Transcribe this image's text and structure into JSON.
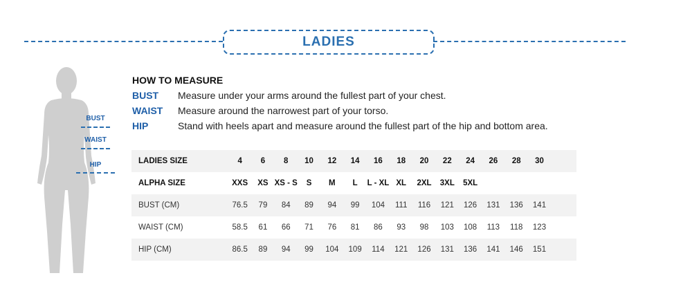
{
  "title": "LADIES",
  "how_to": {
    "heading": "HOW TO MEASURE",
    "items": [
      {
        "key": "BUST",
        "text": "Measure under your arms around the fullest part of your chest."
      },
      {
        "key": "WAIST",
        "text": "Measure around the narrowest part of your torso."
      },
      {
        "key": "HIP",
        "text": "Stand with heels apart and measure around the fullest part of the hip and bottom area."
      }
    ]
  },
  "figure_labels": [
    "BUST",
    "WAIST",
    "HIP"
  ],
  "colors": {
    "accent": "#2a6fb0",
    "silhouette": "#cfcfcf"
  },
  "table": {
    "rows": [
      {
        "label": "LADIES SIZE",
        "bold": true,
        "cells": [
          "4",
          "6",
          "8",
          "10",
          "12",
          "14",
          "16",
          "18",
          "20",
          "22",
          "24",
          "26",
          "28",
          "30"
        ]
      },
      {
        "label": "ALPHA SIZE",
        "bold": true,
        "cells": [
          "XXS",
          "XS",
          "XS - S",
          "S",
          "M",
          "L",
          "L - XL",
          "XL",
          "2XL",
          "3XL",
          "5XL",
          "",
          "",
          ""
        ]
      },
      {
        "label": "BUST (CM)",
        "bold": false,
        "cells": [
          "76.5",
          "79",
          "84",
          "89",
          "94",
          "99",
          "104",
          "111",
          "116",
          "121",
          "126",
          "131",
          "136",
          "141"
        ]
      },
      {
        "label": "WAIST (CM)",
        "bold": false,
        "cells": [
          "58.5",
          "61",
          "66",
          "71",
          "76",
          "81",
          "86",
          "93",
          "98",
          "103",
          "108",
          "113",
          "118",
          "123"
        ]
      },
      {
        "label": "HIP (CM)",
        "bold": false,
        "cells": [
          "86.5",
          "89",
          "94",
          "99",
          "104",
          "109",
          "114",
          "121",
          "126",
          "131",
          "136",
          "141",
          "146",
          "151"
        ]
      }
    ]
  }
}
